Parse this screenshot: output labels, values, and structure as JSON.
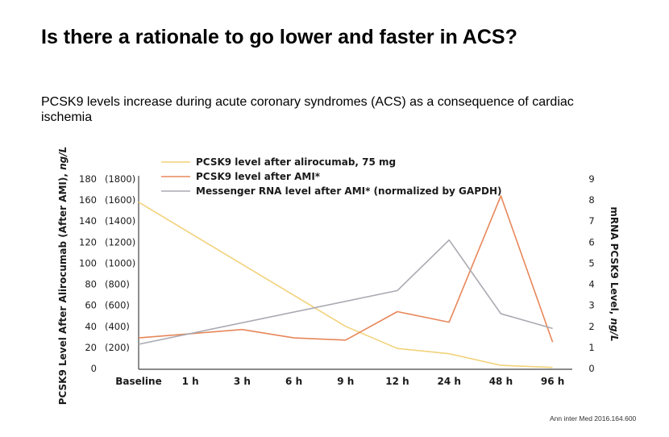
{
  "title": "Is there a rationale to go lower and faster in ACS?",
  "subtitle": "PCSK9 levels increase during acute coronary syndromes (ACS) as a consequence of cardiac ischemia",
  "citation": "Ann inter Med 2016.164.600",
  "chart_data": {
    "type": "line",
    "categories": [
      "Baseline",
      "1 h",
      "3 h",
      "6 h",
      "9 h",
      "12 h",
      "24 h",
      "48 h",
      "96 h"
    ],
    "left_axis": {
      "title_plain": "PCSK9 Level After Alirocumab (After AMI), ",
      "title_unit": "ng/L",
      "range": [
        0,
        180
      ],
      "ticks": [
        0,
        20,
        40,
        60,
        80,
        100,
        120,
        140,
        160,
        180
      ],
      "secondary_labels": [
        "",
        "(200)",
        "(400)",
        "(600)",
        "(800)",
        "(1000)",
        "(1200)",
        "(1400)",
        "(1600)",
        "(1800)"
      ]
    },
    "right_axis": {
      "title_plain": "mRNA PCSK9 Level, ",
      "title_unit": "ng/L",
      "range": [
        0,
        9
      ],
      "ticks": [
        0,
        1,
        2,
        3,
        4,
        5,
        6,
        7,
        8,
        9
      ]
    },
    "series": [
      {
        "name": "PCSK9 level after alirocumab, 75 mg",
        "color": "#f2d27a",
        "axis": "left",
        "points": [
          [
            0,
            158
          ],
          [
            4,
            40
          ],
          [
            5,
            19
          ],
          [
            6,
            14
          ],
          [
            7,
            3
          ],
          [
            8,
            1
          ]
        ]
      },
      {
        "name": "PCSK9 level after AMI*",
        "color": "#e8875a",
        "axis": "left",
        "points": [
          [
            0,
            29
          ],
          [
            1,
            33
          ],
          [
            2,
            37
          ],
          [
            3,
            29
          ],
          [
            4,
            27
          ],
          [
            5,
            54
          ],
          [
            6,
            44
          ],
          [
            7,
            164
          ],
          [
            8,
            25
          ]
        ]
      },
      {
        "name": "Messenger RNA level after AMI* (normalized by GAPDH)",
        "color": "#a9a9b2",
        "axis": "right",
        "points": [
          [
            0,
            1.15
          ],
          [
            5,
            3.7
          ],
          [
            6,
            6.1
          ],
          [
            7,
            2.6
          ],
          [
            8,
            1.9
          ]
        ]
      }
    ]
  }
}
